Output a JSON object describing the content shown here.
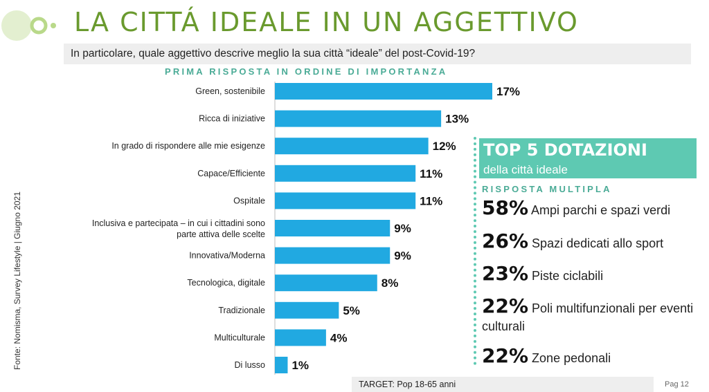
{
  "header": {
    "title": "LA CITTÁ IDEALE IN UN AGGETTIVO",
    "question": "In particolare, quale aggettivo descrive meglio la sua città “ideale” del post-Covid-19?"
  },
  "chart_data": {
    "type": "bar",
    "orientation": "horizontal",
    "title": "PRIMA RISPOSTA IN ORDINE DI IMPORTANZA",
    "categories": [
      "Green, sostenibile",
      "Ricca di iniziative",
      "In grado di rispondere alle mie esigenze",
      "Capace/Efficiente",
      "Ospitale",
      "Inclusiva e partecipata – in cui i cittadini sono parte attiva delle scelte",
      "Innovativa/Moderna",
      "Tecnologica, digitale",
      "Tradizionale",
      "Multiculturale",
      "Di lusso"
    ],
    "values": [
      17,
      13,
      12,
      11,
      11,
      9,
      9,
      8,
      5,
      4,
      1
    ],
    "value_labels": [
      "17%",
      "13%",
      "12%",
      "11%",
      "11%",
      "9%",
      "9%",
      "8%",
      "5%",
      "4%",
      "1%"
    ],
    "unit": "%",
    "xlim": [
      0,
      17
    ],
    "bar_color": "#21a9e1",
    "grid": false,
    "legend": "none"
  },
  "top5": {
    "title": "TOP 5 DOTAZIONI",
    "subtitle": "della città ideale",
    "label": "RISPOSTA MULTIPLA",
    "accent": "#5ec9b2",
    "items": [
      {
        "pct": "58%",
        "text": "Ampi parchi e spazi verdi"
      },
      {
        "pct": "26%",
        "text": "Spazi dedicati allo sport"
      },
      {
        "pct": "23%",
        "text": "Piste ciclabili"
      },
      {
        "pct": "22%",
        "text": "Poli multifunzionali per eventi culturali"
      },
      {
        "pct": "22%",
        "text": "Zone pedonali"
      }
    ]
  },
  "footer": {
    "source": "Fonte: Nomisma, Survey Lifestyle | Giugno 2021",
    "target": "TARGET: Pop 18-65 anni",
    "page": "Pag 12"
  },
  "colors": {
    "title": "#6a9a2e",
    "logo": "#b9d98a"
  }
}
